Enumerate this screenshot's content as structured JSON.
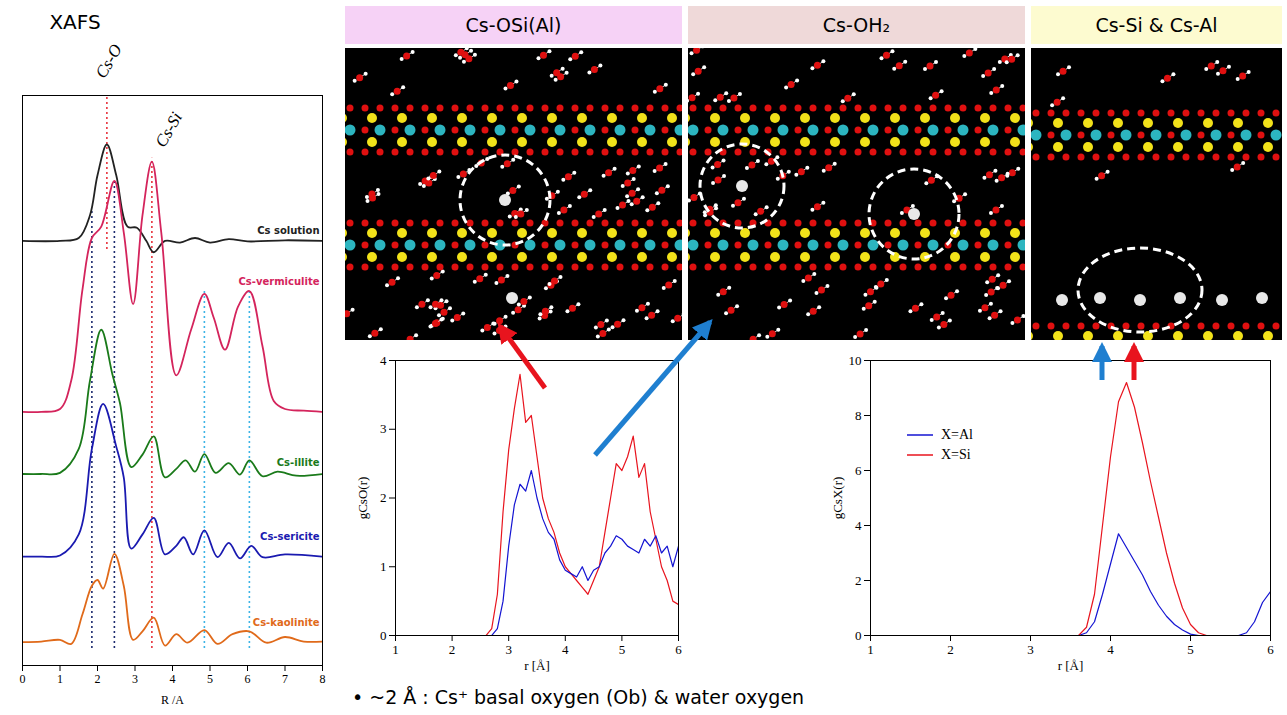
{
  "panels": [
    {
      "title": "Cs-OSi(Al)"
    },
    {
      "title": "Cs-OH₂"
    },
    {
      "title": "Cs-Si & Cs-Al"
    }
  ],
  "note": "• ~2 Å : Cs⁺ basal oxygen (Ob) & water oxygen",
  "chart_data": [
    {
      "type": "line",
      "title": "XAFS",
      "x_label": "R /A",
      "xlim": [
        0,
        8
      ],
      "xticks": [
        0,
        1,
        2,
        3,
        4,
        5,
        6,
        7,
        8
      ],
      "ylim": [
        0,
        10
      ],
      "yticks": [],
      "tick_labels": "x",
      "series": [
        {
          "name": "Cs solution",
          "color": "#222222",
          "x": [
            0,
            1,
            1.5,
            1.8,
            2,
            2.25,
            2.5,
            2.8,
            3.05,
            3.3,
            3.5,
            3.8,
            4.2,
            4.6,
            5,
            5.5,
            6,
            7,
            8
          ],
          "values": [
            7.45,
            7.45,
            7.5,
            7.9,
            8.6,
            9.14,
            8.6,
            7.7,
            7.68,
            7.45,
            7.25,
            7.45,
            7.42,
            7.5,
            7.42,
            7.48,
            7.44,
            7.46,
            7.45
          ]
        },
        {
          "name": "Cs-vermiculite",
          "color": "#d4245c",
          "x": [
            0,
            0.5,
            1,
            1.3,
            1.6,
            1.85,
            2.1,
            2.45,
            2.7,
            2.95,
            3.2,
            3.45,
            3.7,
            4.1,
            4.5,
            4.85,
            5.1,
            5.4,
            5.75,
            6.05,
            6.4,
            6.7,
            7,
            7.5,
            8
          ],
          "values": [
            4.45,
            4.45,
            4.5,
            5.0,
            6.6,
            7.5,
            7.7,
            8.5,
            7.6,
            6.34,
            7.9,
            8.84,
            7.6,
            5.09,
            5.9,
            6.52,
            6.1,
            5.54,
            6.3,
            6.57,
            5.6,
            4.64,
            4.5,
            4.47,
            4.45
          ]
        },
        {
          "name": "Cs-illite",
          "color": "#1a7a1a",
          "x": [
            0,
            0.5,
            1,
            1.5,
            1.8,
            2.1,
            2.4,
            2.6,
            2.9,
            3.2,
            3.5,
            3.8,
            4.1,
            4.35,
            4.6,
            4.85,
            5.15,
            5.5,
            5.8,
            6.05,
            6.4,
            6.8,
            7.3,
            8
          ],
          "values": [
            3.36,
            3.36,
            3.38,
            3.8,
            5.0,
            5.89,
            5.1,
            4.6,
            3.48,
            3.7,
            4.02,
            3.3,
            3.45,
            3.6,
            3.4,
            3.71,
            3.38,
            3.55,
            3.35,
            3.6,
            3.32,
            3.4,
            3.33,
            3.36
          ]
        },
        {
          "name": "Cs-sericite",
          "color": "#1a1ab0",
          "x": [
            0,
            0.5,
            1,
            1.5,
            1.85,
            2.15,
            2.5,
            2.7,
            2.9,
            3.2,
            3.5,
            3.8,
            4.1,
            4.3,
            4.55,
            4.85,
            5.2,
            5.5,
            5.8,
            6.1,
            6.4,
            7,
            8
          ],
          "values": [
            1.91,
            1.91,
            1.93,
            2.3,
            3.8,
            4.59,
            3.84,
            3.3,
            2.05,
            2.3,
            2.59,
            1.95,
            2.1,
            2.25,
            1.95,
            2.37,
            1.9,
            2.15,
            1.88,
            2.1,
            1.9,
            1.95,
            1.91
          ]
        },
        {
          "name": "Cs-kaolinite",
          "color": "#e06a1a",
          "x": [
            0,
            0.5,
            1,
            1.3,
            1.6,
            1.85,
            2,
            2.15,
            2.45,
            2.7,
            2.95,
            3.2,
            3.5,
            3.8,
            4.1,
            4.4,
            4.85,
            5.2,
            5.6,
            6.05,
            6.5,
            7,
            7.5,
            8
          ],
          "values": [
            0.41,
            0.42,
            0.45,
            0.38,
            0.9,
            1.4,
            1.5,
            1.35,
            1.96,
            1.4,
            0.45,
            0.6,
            0.84,
            0.35,
            0.55,
            0.4,
            0.62,
            0.38,
            0.55,
            0.6,
            0.4,
            0.5,
            0.42,
            0.42
          ]
        }
      ],
      "vlines": [
        {
          "x": 2.25,
          "y_range": [
            7.3,
            10
          ],
          "color": "#e8323c",
          "line_style": "dotted"
        },
        {
          "x": 3.45,
          "y_range": [
            0.3,
            8.9
          ],
          "color": "#e8323c",
          "line_style": "dotted"
        },
        {
          "x": 1.85,
          "y_range": [
            0.3,
            8.0
          ],
          "color": "#1c2a6e",
          "line_style": "dotted"
        },
        {
          "x": 2.45,
          "y_range": [
            0.3,
            8.5
          ],
          "color": "#1c2a6e",
          "line_style": "dotted"
        },
        {
          "x": 4.85,
          "y_range": [
            0.3,
            6.6
          ],
          "color": "#3cb4e6",
          "line_style": "dotted"
        },
        {
          "x": 6.05,
          "y_range": [
            0.3,
            6.6
          ],
          "color": "#3cb4e6",
          "line_style": "dotted"
        }
      ],
      "annotations": [
        {
          "text": "Cs-O",
          "x": 2.3,
          "y": 10.6
        },
        {
          "text": "Cs-Si",
          "x": 3.9,
          "y": 9.4
        }
      ]
    },
    {
      "type": "line",
      "x_label": "r [Å]",
      "y_label": "gCsO(r)",
      "xlim": [
        1,
        6
      ],
      "xticks": [
        1,
        2,
        3,
        4,
        5,
        6
      ],
      "ylim": [
        0,
        4
      ],
      "yticks": [
        0,
        1,
        2,
        3,
        4
      ],
      "x": [
        1,
        2,
        2.6,
        2.7,
        2.8,
        2.9,
        3,
        3.1,
        3.2,
        3.3,
        3.4,
        3.5,
        3.6,
        3.7,
        3.8,
        3.9,
        4,
        4.1,
        4.2,
        4.3,
        4.4,
        4.5,
        4.6,
        4.7,
        4.8,
        4.9,
        5,
        5.1,
        5.2,
        5.3,
        5.4,
        5.5,
        5.6,
        5.7,
        5.8,
        5.9,
        6
      ],
      "series": [
        {
          "color": "#e8141e",
          "values": [
            0,
            0,
            0,
            0.1,
            0.6,
            1.8,
            2.7,
            3.3,
            3.8,
            3.1,
            3.2,
            2.6,
            2.0,
            1.7,
            1.5,
            1.2,
            1.0,
            0.9,
            0.8,
            0.7,
            0.6,
            0.8,
            1.0,
            1.5,
            2.0,
            2.5,
            2.4,
            2.6,
            2.9,
            2.3,
            2.5,
            1.8,
            1.4,
            1.0,
            0.8,
            0.5,
            0.45
          ]
        },
        {
          "color": "#1414d2",
          "values": [
            0,
            0,
            0,
            0,
            0.1,
            0.5,
            1.3,
            1.9,
            2.2,
            2.1,
            2.4,
            2.0,
            1.7,
            1.5,
            1.4,
            1.1,
            0.95,
            0.9,
            0.85,
            1.0,
            0.8,
            0.95,
            1.0,
            1.2,
            1.3,
            1.45,
            1.4,
            1.3,
            1.25,
            1.2,
            1.4,
            1.3,
            1.45,
            1.2,
            1.3,
            1.0,
            1.3
          ]
        }
      ]
    },
    {
      "type": "line",
      "x_label": "r [Å]",
      "y_label": "gCsX(r)",
      "xlim": [
        1,
        6
      ],
      "xticks": [
        1,
        2,
        3,
        4,
        5,
        6
      ],
      "ylim": [
        0,
        10
      ],
      "yticks": [
        0,
        2,
        4,
        6,
        8,
        10
      ],
      "legend": "upper left",
      "x": [
        1,
        3.6,
        3.7,
        3.8,
        3.9,
        4,
        4.1,
        4.2,
        4.3,
        4.4,
        4.5,
        4.6,
        4.7,
        4.8,
        4.9,
        5,
        5.1,
        5.2,
        5.3,
        5.4,
        5.5,
        5.6,
        5.7,
        5.8,
        5.9,
        6
      ],
      "series": [
        {
          "name": "X=Al",
          "color": "#1414d2",
          "values": [
            0,
            0,
            0.1,
            0.5,
            1.5,
            2.6,
            3.7,
            3.2,
            2.7,
            2.2,
            1.6,
            1.1,
            0.7,
            0.4,
            0.2,
            0.05,
            0,
            0,
            0,
            0,
            0,
            0,
            0.1,
            0.5,
            1.2,
            1.6
          ]
        },
        {
          "name": "X=Si",
          "color": "#e8141e",
          "values": [
            0,
            0,
            0.3,
            1.5,
            4.0,
            6.5,
            8.5,
            9.2,
            8.3,
            7.0,
            5.6,
            4.3,
            3.0,
            1.9,
            1.0,
            0.4,
            0.1,
            0,
            0,
            0,
            0,
            0,
            0,
            0,
            0,
            0
          ]
        }
      ]
    }
  ]
}
